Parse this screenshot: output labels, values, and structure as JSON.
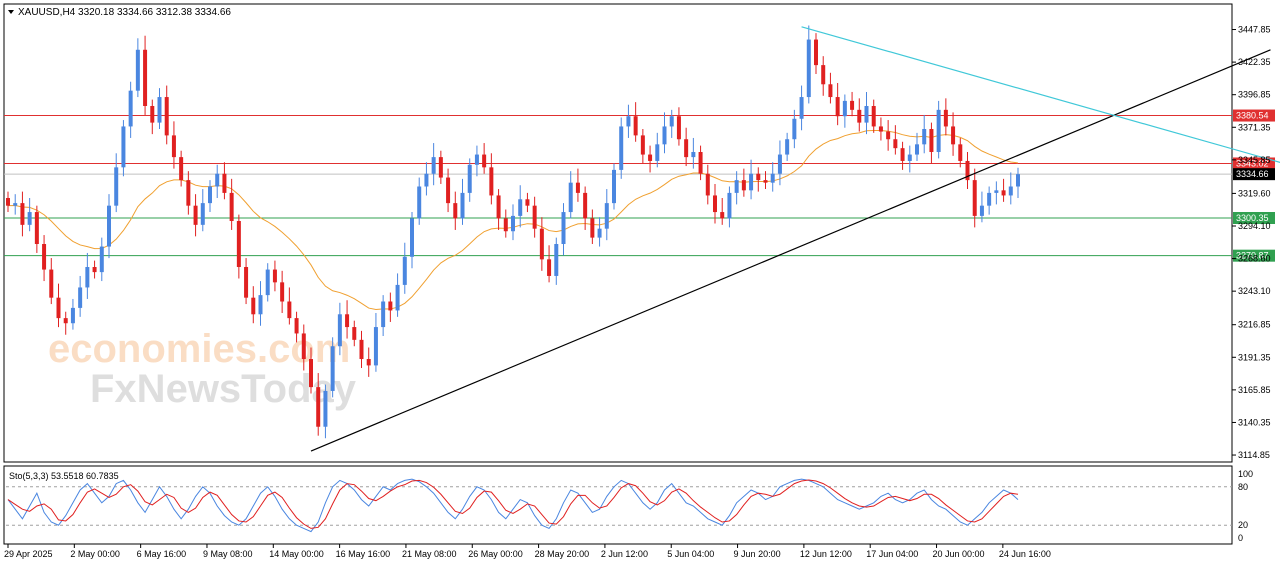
{
  "chart_data": {
    "type": "candlestick",
    "symbol_header": "XAUUSD,H4  3320.18 3334.66 3312.38 3334.66",
    "ylim": [
      3114.88,
      3460
    ],
    "y_ticks": [
      "3447.85",
      "3422.35",
      "3396.85",
      "3371.35",
      "3345.85",
      "3319.60",
      "3294.10",
      "3268.60",
      "3243.10",
      "3216.85",
      "3191.35",
      "3165.85",
      "3140.35",
      "3114.85"
    ],
    "x_ticks": [
      "29 Apr 2025",
      "2 May 00:00",
      "6 May 16:00",
      "9 May 08:00",
      "14 May 00:00",
      "16 May 16:00",
      "21 May 08:00",
      "26 May 00:00",
      "28 May 20:00",
      "2 Jun 12:00",
      "5 Jun 04:00",
      "9 Jun 20:00",
      "12 Jun 12:00",
      "17 Jun 04:00",
      "20 Jun 00:00",
      "24 Jun 16:00"
    ],
    "closes": [
      3310,
      3312,
      3295,
      3305,
      3280,
      3260,
      3238,
      3222,
      3218,
      3230,
      3246,
      3262,
      3258,
      3278,
      3310,
      3340,
      3372,
      3400,
      3432,
      3388,
      3375,
      3395,
      3365,
      3348,
      3330,
      3310,
      3295,
      3312,
      3325,
      3335,
      3320,
      3298,
      3262,
      3238,
      3225,
      3240,
      3260,
      3250,
      3235,
      3222,
      3210,
      3190,
      3168,
      3137,
      3165,
      3200,
      3225,
      3215,
      3205,
      3190,
      3185,
      3215,
      3235,
      3228,
      3248,
      3270,
      3300,
      3325,
      3335,
      3348,
      3332,
      3312,
      3300,
      3320,
      3342,
      3350,
      3340,
      3318,
      3300,
      3290,
      3302,
      3315,
      3310,
      3292,
      3268,
      3255,
      3280,
      3305,
      3328,
      3320,
      3300,
      3285,
      3292,
      3312,
      3338,
      3372,
      3380,
      3365,
      3350,
      3345,
      3358,
      3372,
      3380,
      3362,
      3348,
      3352,
      3335,
      3318,
      3305,
      3300,
      3320,
      3330,
      3322,
      3335,
      3330,
      3328,
      3335,
      3350,
      3362,
      3378,
      3395,
      3440,
      3420,
      3405,
      3395,
      3380,
      3392,
      3385,
      3375,
      3388,
      3372,
      3368,
      3362,
      3355,
      3345,
      3350,
      3358,
      3370,
      3352,
      3385,
      3372,
      3358,
      3345,
      3330,
      3302,
      3310,
      3320,
      3322,
      3318,
      3325,
      3334.66
    ],
    "ema": {
      "name": "",
      "color": "#f0a030"
    },
    "horizontal_levels": [
      {
        "value": 3380.54,
        "label": "3380.54",
        "color": "#e03030"
      },
      {
        "value": 3343.02,
        "label": "3343.02",
        "color": "#e03030"
      },
      {
        "value": 3334.66,
        "label": "3334.66",
        "color": "#000000"
      },
      {
        "value": 3300.35,
        "label": "3300.35",
        "color": "#30a050"
      },
      {
        "value": 3270.87,
        "label": "3270.87",
        "color": "#30a050"
      }
    ],
    "trendlines": [
      {
        "from": [
          42,
          3118
        ],
        "to": [
          175,
          3432
        ],
        "color": "#000000"
      },
      {
        "from": [
          110,
          3450
        ],
        "to": [
          180,
          3338
        ],
        "color": "#40c8d8"
      }
    ],
    "colors": {
      "up": "#4a86e0",
      "down": "#e02020"
    },
    "stochastic": {
      "label": "Sto(5,3,3) 53.5518 60.7835",
      "levels": [
        "100",
        "80",
        "20",
        "0"
      ],
      "k": [
        60,
        45,
        30,
        50,
        70,
        40,
        25,
        20,
        35,
        55,
        75,
        85,
        70,
        55,
        65,
        85,
        90,
        75,
        55,
        40,
        60,
        80,
        65,
        45,
        30,
        45,
        65,
        80,
        70,
        50,
        35,
        25,
        20,
        30,
        50,
        70,
        80,
        65,
        45,
        30,
        20,
        15,
        10,
        25,
        55,
        80,
        90,
        85,
        75,
        60,
        50,
        65,
        80,
        75,
        85,
        90,
        92,
        88,
        80,
        70,
        55,
        40,
        30,
        45,
        65,
        80,
        75,
        60,
        40,
        30,
        45,
        60,
        55,
        35,
        20,
        15,
        30,
        55,
        75,
        70,
        55,
        40,
        45,
        65,
        80,
        90,
        85,
        70,
        55,
        45,
        55,
        75,
        85,
        70,
        55,
        50,
        40,
        30,
        25,
        20,
        35,
        55,
        65,
        75,
        70,
        60,
        65,
        80,
        85,
        90,
        92,
        90,
        85,
        80,
        70,
        60,
        55,
        50,
        45,
        50,
        55,
        65,
        70,
        60,
        55,
        60,
        70,
        75,
        60,
        50,
        45,
        35,
        25,
        20,
        30,
        40,
        55,
        65,
        75,
        70,
        60
      ]
    },
    "watermark": {
      "line1": "economies.com",
      "line2": "FxNewsToday"
    }
  }
}
